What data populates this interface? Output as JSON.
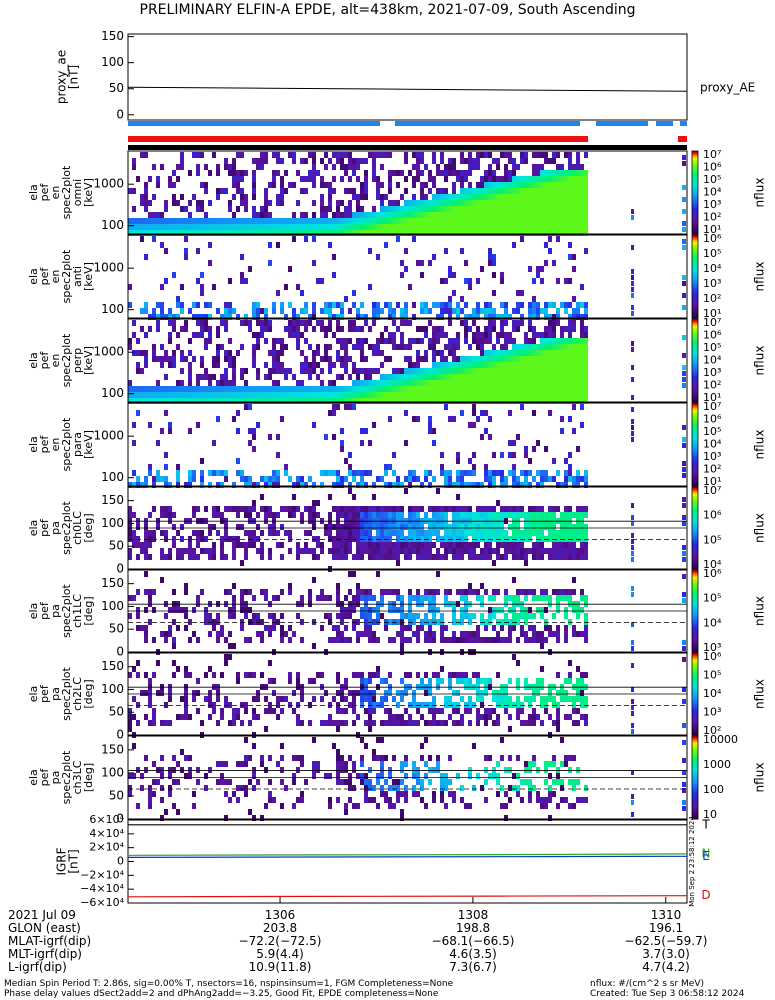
{
  "title": "PRELIMINARY ELFIN-A EPDE, alt=438km, 2021-07-09, South Ascending",
  "colors": {
    "ae_line": "#000000",
    "bar_blue": "#1c86ee",
    "bar_red": "#ee1111",
    "bar_black": "#000000",
    "grf_black": "#000000",
    "grf_green": "#22aa22",
    "grf_blue": "#1133cc",
    "grf_red": "#dd1111"
  },
  "chart_data": {
    "type": "spectrogram-stack",
    "x_ticks": [
      "1306",
      "1308",
      "1310"
    ],
    "ae_panel": {
      "ylabel": "proxy_ae\n[nT]",
      "legend": "proxy_AE",
      "yticks": [
        "150",
        "100",
        "50",
        "0"
      ],
      "ylim": [
        -10,
        155
      ],
      "x": [
        0,
        0.25,
        0.5,
        0.75,
        1.0
      ],
      "values": [
        53,
        51,
        49,
        47,
        45
      ]
    },
    "spec_panels": [
      {
        "ylabel": "ela\npef\nen\nspec2plot\nomni\n[keV]",
        "yticks": [
          "1000",
          "100"
        ],
        "cbar_label": "nflux",
        "cbar_ticks": [
          "10⁷",
          "10⁶",
          "10⁵",
          "10⁴",
          "10³",
          "10²",
          "10¹"
        ]
      },
      {
        "ylabel": "ela\npef\nen\nspec2plot\nanti\n[keV]",
        "yticks": [
          "1000",
          "100"
        ],
        "cbar_label": "nflux",
        "cbar_ticks": [
          "10⁶",
          "10⁵",
          "10⁴",
          "10³",
          "10²",
          "10¹"
        ]
      },
      {
        "ylabel": "ela\npef\nen\nspec2plot\nperp\n[keV]",
        "yticks": [
          "1000",
          "100"
        ],
        "cbar_label": "nflux",
        "cbar_ticks": [
          "10⁷",
          "10⁶",
          "10⁵",
          "10⁴",
          "10³",
          "10²",
          "10¹"
        ]
      },
      {
        "ylabel": "ela\npef\nen\nspec2plot\npara\n[keV]",
        "yticks": [
          "1000",
          "100"
        ],
        "cbar_label": "nflux",
        "cbar_ticks": [
          "10⁷",
          "10⁶",
          "10⁵",
          "10⁴",
          "10³",
          "10²",
          "10¹"
        ]
      },
      {
        "ylabel": "ela\npef\npa\nspec2plot\nch0LC\n[deg]",
        "yticks": [
          "150",
          "100",
          "50",
          "0"
        ],
        "cbar_label": "nflux",
        "cbar_ticks": [
          "10⁷",
          "10⁶",
          "10⁵",
          "10⁴"
        ]
      },
      {
        "ylabel": "ela\npef\npa\nspec2plot\nch1LC\n[deg]",
        "yticks": [
          "150",
          "100",
          "50",
          "0"
        ],
        "cbar_label": "nflux",
        "cbar_ticks": [
          "10⁶",
          "10⁵",
          "10⁴",
          "10³"
        ]
      },
      {
        "ylabel": "ela\npef\npa\nspec2plot\nch2LC\n[deg]",
        "yticks": [
          "150",
          "100",
          "50",
          "0"
        ],
        "cbar_label": "nflux",
        "cbar_ticks": [
          "10⁶",
          "10⁵",
          "10⁴",
          "10³",
          "10²"
        ]
      },
      {
        "ylabel": "ela\npef\npa\nspec2plot\nch3LC\n[deg]",
        "yticks": [
          "150",
          "100",
          "50",
          "0"
        ],
        "cbar_label": "nflux",
        "cbar_ticks": [
          "10000",
          "1000",
          "100",
          "10"
        ]
      }
    ],
    "grf_panel": {
      "ylabel": "IGRF\n[nT]",
      "yticks": [
        "6×10⁴",
        "4×10⁴",
        "2×10⁴",
        "0",
        "−2×10⁴",
        "−4×10⁴",
        "−6×10⁴"
      ],
      "ylim": [
        -60000,
        60000
      ],
      "series": [
        {
          "name": "T",
          "values": [
            53000,
            53000,
            53000,
            53000
          ]
        },
        {
          "name": "N",
          "values": [
            9000,
            9500,
            10000,
            11000
          ]
        },
        {
          "name": "E",
          "values": [
            6000,
            6500,
            7000,
            7500
          ]
        },
        {
          "name": "D",
          "values": [
            -51000,
            -50500,
            -50000,
            -49500
          ]
        }
      ],
      "side_text": "Mon Sep 2 23:58:12 2024"
    }
  },
  "ephemeris": {
    "rows": [
      {
        "label": "2021 Jul 09",
        "v1": "1306",
        "v2": "1308",
        "v3": "1310"
      },
      {
        "label": "GLON (east)",
        "v1": "203.8",
        "v2": "198.8",
        "v3": "196.1"
      },
      {
        "label": "MLAT-igrf(dip)",
        "v1": "−72.2(−72.5)",
        "v2": "−68.1(−66.5)",
        "v3": "−62.5(−59.7)"
      },
      {
        "label": "MLT-igrf(dip)",
        "v1": "5.9(4.4)",
        "v2": "4.6(3.5)",
        "v3": "3.7(3.0)"
      },
      {
        "label": "L-igrf(dip)",
        "v1": "10.9(11.8)",
        "v2": "7.3(6.7)",
        "v3": "4.7(4.2)"
      }
    ]
  },
  "footer": {
    "line1_left": "Median Spin Period T: 2.86s, sig=0.00% T, nsectors=16, nspinsinsum=1, FGM Completeness=None",
    "line2_left": "Phase delay values dSect2add=2 and dPhAng2add=−3.25, Good Fit, EPDE completeness=None",
    "line1_right": "nflux: #/(cm^2 s sr MeV)",
    "line2_right": "Created: Tue Sep  3 06:58:12 2024"
  }
}
